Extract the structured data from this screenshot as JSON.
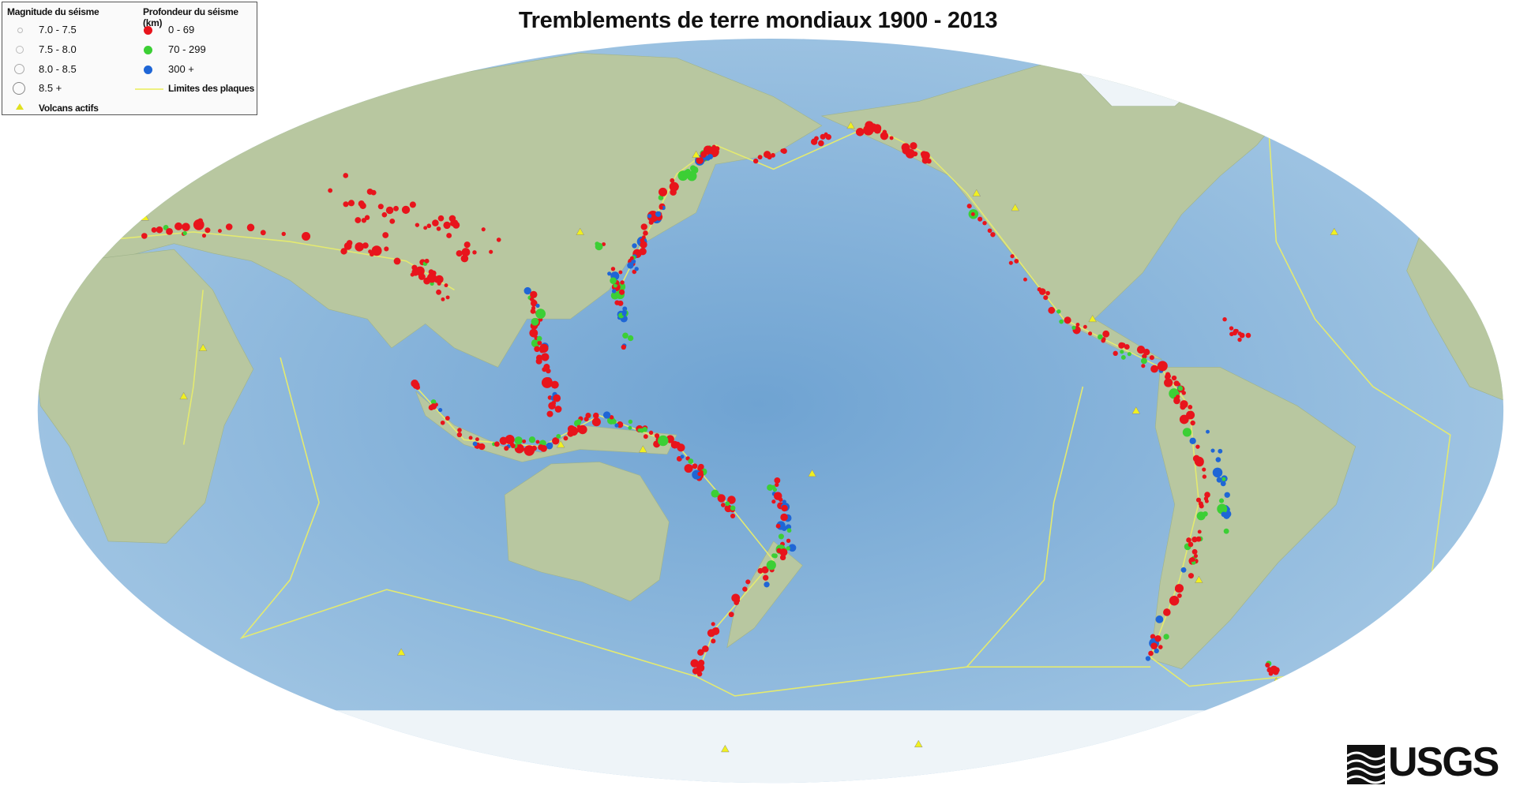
{
  "title": "Tremblements de terre mondiaux 1900 - 2013",
  "legend": {
    "magnitude_heading": "Magnitude du séisme",
    "magnitudes": [
      "7.0 - 7.5",
      "7.5 - 8.0",
      "8.0 - 8.5",
      "8.5 +"
    ],
    "depth_heading": "Profondeur du séisme (km)",
    "depths": [
      {
        "label": "0 - 69",
        "color": "#e8141c"
      },
      {
        "label": "70 - 299",
        "color": "#3ccf35"
      },
      {
        "label": "300 +",
        "color": "#1f66d6"
      }
    ],
    "plates_label": "Limites des plaques",
    "plates_color": "#e4ea70",
    "volcanoes_label": "Volcans actifs",
    "volcano_color": "#f0f020"
  },
  "logo": {
    "text": "USGS"
  },
  "colors": {
    "ocean": "#7fb0d8",
    "land": "#b9c9a0",
    "ice": "#eef4f8"
  }
}
